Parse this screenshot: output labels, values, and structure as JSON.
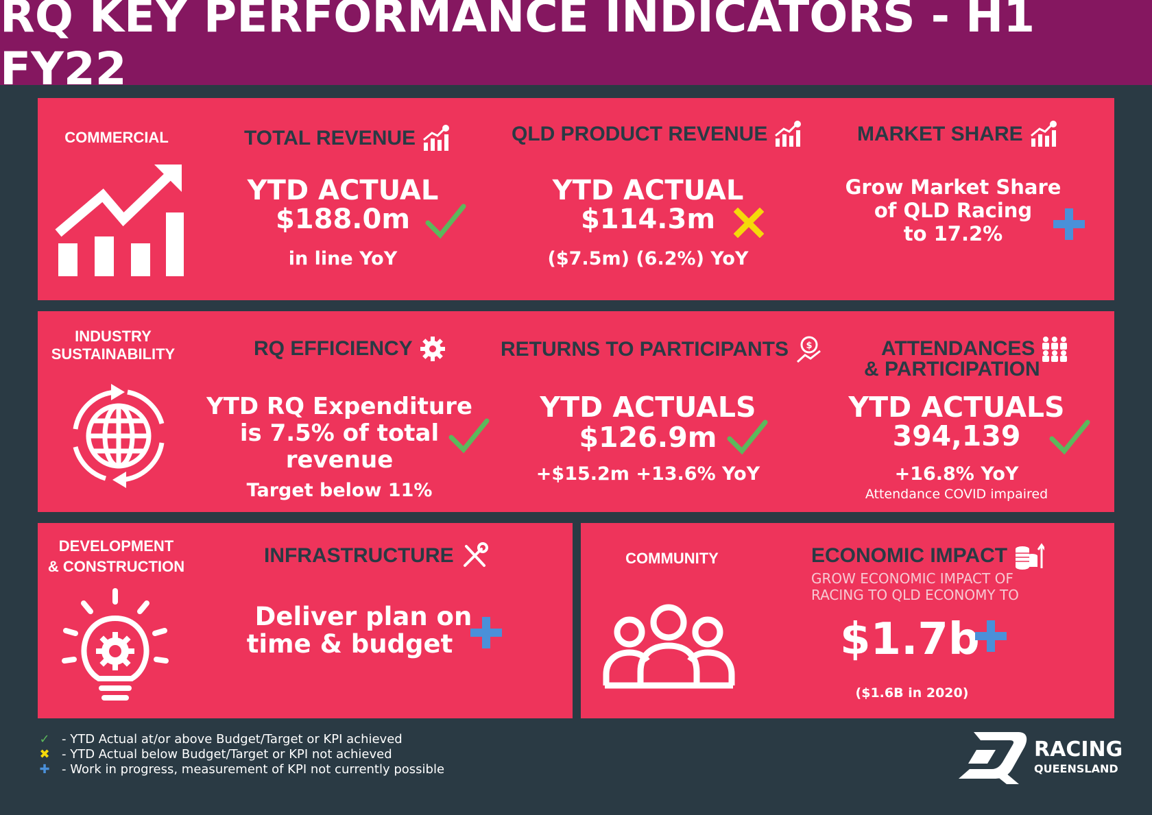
{
  "header": {
    "title": "RQ KEY PERFORMANCE INDICATORS - H1 FY22"
  },
  "colors": {
    "header_bg": "#851760",
    "panel": "#ee345b",
    "bg": "#2a3a44",
    "check": "#5cb85c",
    "cross": "#f5d90a",
    "plus": "#4a90d9"
  },
  "commercial": {
    "category": "COMMERCIAL",
    "total_revenue": {
      "title": "TOTAL REVENUE",
      "line1": "YTD ACTUAL",
      "line2": "$188.0m",
      "sub": "in line YoY",
      "status": "check"
    },
    "qld_product_revenue": {
      "title": "QLD PRODUCT REVENUE",
      "line1": "YTD ACTUAL",
      "line2": "$114.3m",
      "sub": "($7.5m) (6.2%) YoY",
      "status": "cross"
    },
    "market_share": {
      "title": "MARKET SHARE",
      "line1": "Grow Market Share",
      "line2": "of QLD Racing",
      "line3": "to 17.2%",
      "status": "plus"
    }
  },
  "industry": {
    "category_line1": "INDUSTRY",
    "category_line2": "SUSTAINABILITY",
    "rq_efficiency": {
      "title": "RQ EFFICIENCY",
      "line1": "YTD RQ Expenditure",
      "line2": "is 7.5% of total",
      "line3": "revenue",
      "sub": "Target below 11%",
      "status": "check"
    },
    "returns": {
      "title": "RETURNS TO PARTICIPANTS",
      "line1": "YTD ACTUALS",
      "line2": "$126.9m",
      "sub": "+$15.2m +13.6% YoY",
      "status": "check"
    },
    "attendances": {
      "title_line1": "ATTENDANCES",
      "title_line2": "& PARTICIPATION",
      "line1": "YTD ACTUALS",
      "line2": "394,139",
      "sub": "+16.8% YoY",
      "note": "Attendance COVID impaired",
      "status": "check"
    }
  },
  "development": {
    "category_line1": "DEVELOPMENT",
    "category_line2": "& CONSTRUCTION",
    "infrastructure": {
      "title": "INFRASTRUCTURE",
      "line1": "Deliver plan on",
      "line2": "time & budget",
      "status": "plus"
    }
  },
  "community": {
    "category": "COMMUNITY",
    "economic_impact": {
      "title": "ECONOMIC IMPACT",
      "desc_line1": "GROW ECONOMIC IMPACT OF",
      "desc_line2": "RACING TO QLD ECONOMY TO",
      "value": "$1.7b",
      "note": "($1.6B in 2020)",
      "status": "plus"
    }
  },
  "legend": [
    {
      "symbol": "✓",
      "text": "- YTD Actual at/or above Budget/Target or KPI achieved"
    },
    {
      "symbol": "✖",
      "text": "- YTD Actual below Budget/Target or KPI not achieved"
    },
    {
      "symbol": "✚",
      "text": "- Work in progress, measurement of KPI not currently possible"
    }
  ],
  "logo": {
    "line1": "RACING",
    "line2": "QUEENSLAND"
  }
}
